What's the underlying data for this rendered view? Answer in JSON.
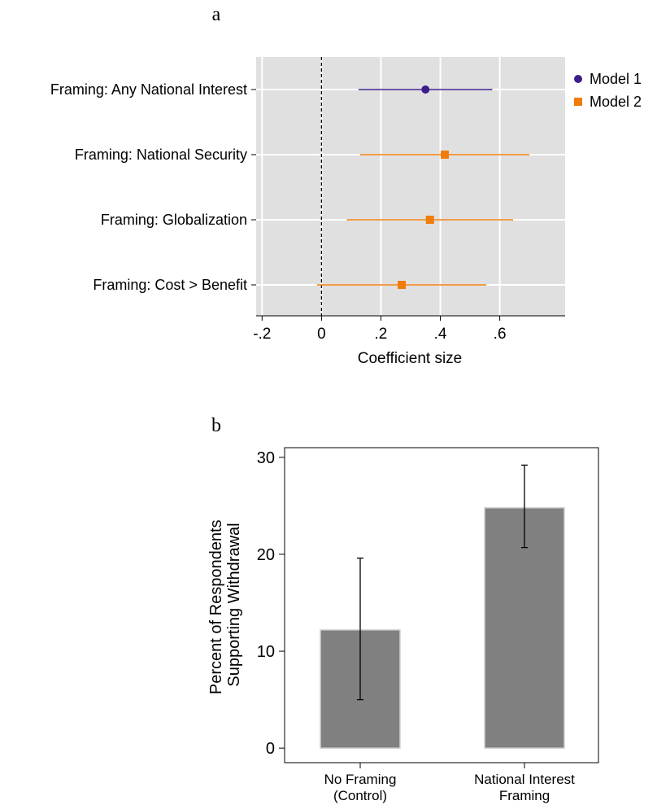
{
  "colors": {
    "panel_bg": "#e0e0e0",
    "model1": "#3b1e88",
    "model2": "#f07c0a",
    "bar": "#808080",
    "bar_edge": "#d0d0d0"
  },
  "chart_data": [
    {
      "type": "scatter",
      "panel_label": "a",
      "xlabel": "Coefficient size",
      "xlim": [
        -0.22,
        0.82
      ],
      "xticks": [
        {
          "value": -0.2,
          "label": "-.2"
        },
        {
          "value": 0,
          "label": "0"
        },
        {
          "value": 0.2,
          "label": ".2"
        },
        {
          "value": 0.4,
          "label": ".4"
        },
        {
          "value": 0.6,
          "label": ".6"
        }
      ],
      "reference_line": 0,
      "grid": true,
      "legend_position": "right",
      "categories": [
        "Framing: Any National Interest",
        "Framing: National Security",
        "Framing: Globalization",
        "Framing: Cost > Benefit"
      ],
      "series": [
        {
          "name": "Model 1",
          "marker": "circle",
          "points": [
            {
              "category": "Framing: Any National Interest",
              "estimate": 0.35,
              "ci_low": 0.125,
              "ci_high": 0.575
            }
          ]
        },
        {
          "name": "Model 2",
          "marker": "square",
          "points": [
            {
              "category": "Framing: National Security",
              "estimate": 0.415,
              "ci_low": 0.13,
              "ci_high": 0.7
            },
            {
              "category": "Framing: Globalization",
              "estimate": 0.365,
              "ci_low": 0.085,
              "ci_high": 0.645
            },
            {
              "category": "Framing: Cost > Benefit",
              "estimate": 0.27,
              "ci_low": -0.015,
              "ci_high": 0.555
            }
          ]
        }
      ]
    },
    {
      "type": "bar",
      "panel_label": "b",
      "ylabel_lines": [
        "Percent of Respondents",
        "Supporting Withdrawal"
      ],
      "ylim": [
        -1.5,
        31
      ],
      "yticks": [
        0,
        10,
        20,
        30
      ],
      "categories": [
        {
          "line1": "No Framing",
          "line2": "(Control)"
        },
        {
          "line1": "National Interest",
          "line2": "Framing"
        }
      ],
      "values": [
        12.2,
        24.8
      ],
      "error_low": [
        5.0,
        20.7
      ],
      "error_high": [
        19.6,
        29.2
      ],
      "grid": false
    }
  ]
}
